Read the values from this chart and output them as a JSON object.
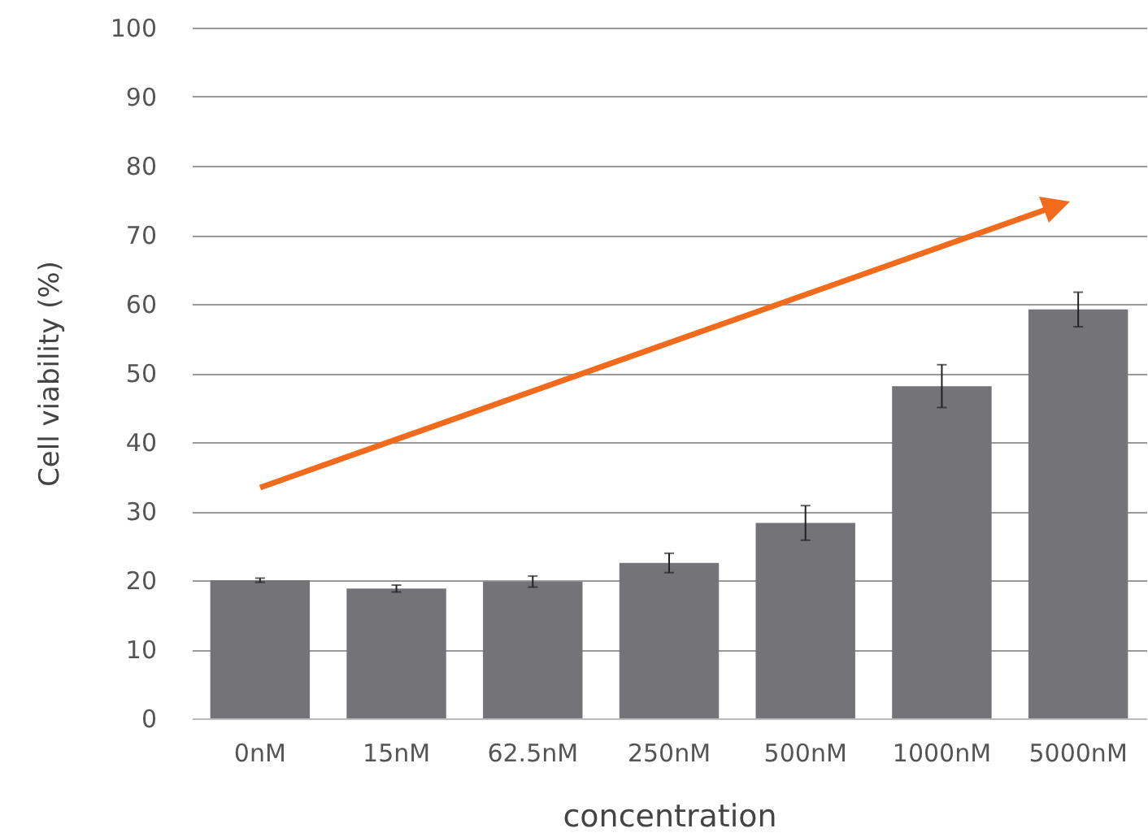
{
  "chart_data": {
    "type": "bar",
    "xlabel": "concentration",
    "ylabel": "Cell viability (%)",
    "categories": [
      "0nM",
      "15nM",
      "62.5nM",
      "250nM",
      "500nM",
      "1000nM",
      "5000nM"
    ],
    "values": [
      20.0,
      18.8,
      19.8,
      22.5,
      28.3,
      48.1,
      59.2
    ],
    "errors": [
      0.3,
      0.5,
      0.8,
      1.4,
      2.5,
      3.1,
      2.5
    ],
    "color": "#747378",
    "ylim": [
      0,
      100
    ],
    "yticks": [
      0,
      10,
      20,
      30,
      40,
      50,
      60,
      70,
      80,
      90,
      100
    ],
    "grid": "y"
  }
}
